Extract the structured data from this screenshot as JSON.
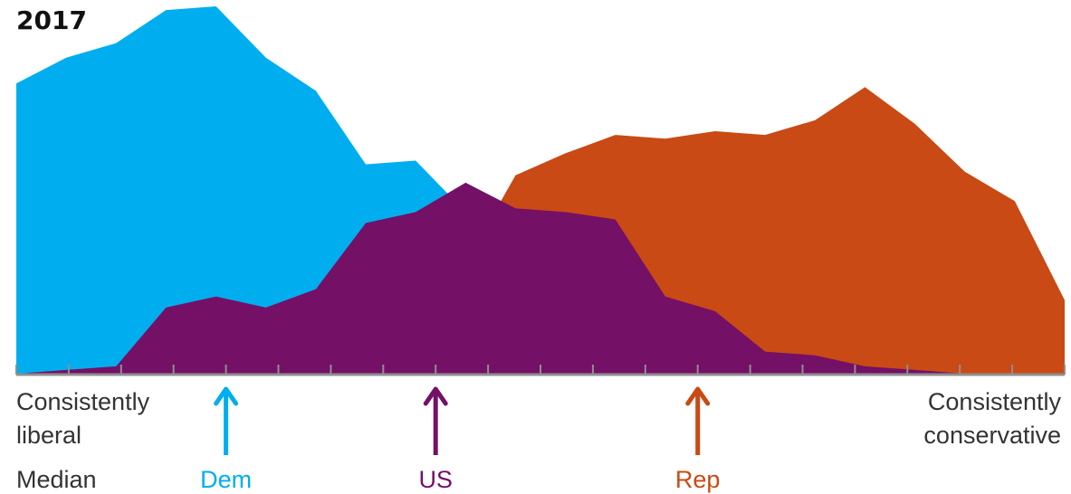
{
  "chart_data": {
    "type": "area",
    "title": "2017",
    "x_left_label": [
      "Consistently",
      "liberal"
    ],
    "x_right_label": [
      "Consistently",
      "conservative"
    ],
    "median_label": "Median",
    "x_ticks": 21,
    "ylim": [
      0,
      100
    ],
    "series": [
      {
        "name": "Rep",
        "color": "#c94a14",
        "values": [
          0,
          0,
          0,
          0,
          0,
          0,
          0,
          0,
          0,
          30,
          54,
          60,
          65,
          64,
          66,
          65,
          69,
          78,
          68,
          55,
          47,
          20
        ]
      },
      {
        "name": "Dem",
        "color": "#00aeef",
        "values": [
          79,
          86,
          90,
          99,
          100,
          86,
          77,
          57,
          58,
          44,
          0,
          0,
          0,
          0,
          0,
          0,
          0,
          0,
          0,
          0,
          0,
          0
        ]
      },
      {
        "name": "US",
        "color": "#741066",
        "values": [
          0,
          1,
          2,
          18,
          21,
          18,
          23,
          41,
          44,
          52,
          45,
          44,
          42,
          21,
          17,
          6,
          5,
          2,
          1,
          0,
          0,
          0
        ]
      }
    ],
    "medians": [
      {
        "name": "Dem",
        "label": "Dem",
        "color": "#00aeef",
        "tick": 4
      },
      {
        "name": "US",
        "label": "US",
        "color": "#741066",
        "tick": 8
      },
      {
        "name": "Rep",
        "label": "Rep",
        "color": "#c94a14",
        "tick": 13
      }
    ]
  }
}
